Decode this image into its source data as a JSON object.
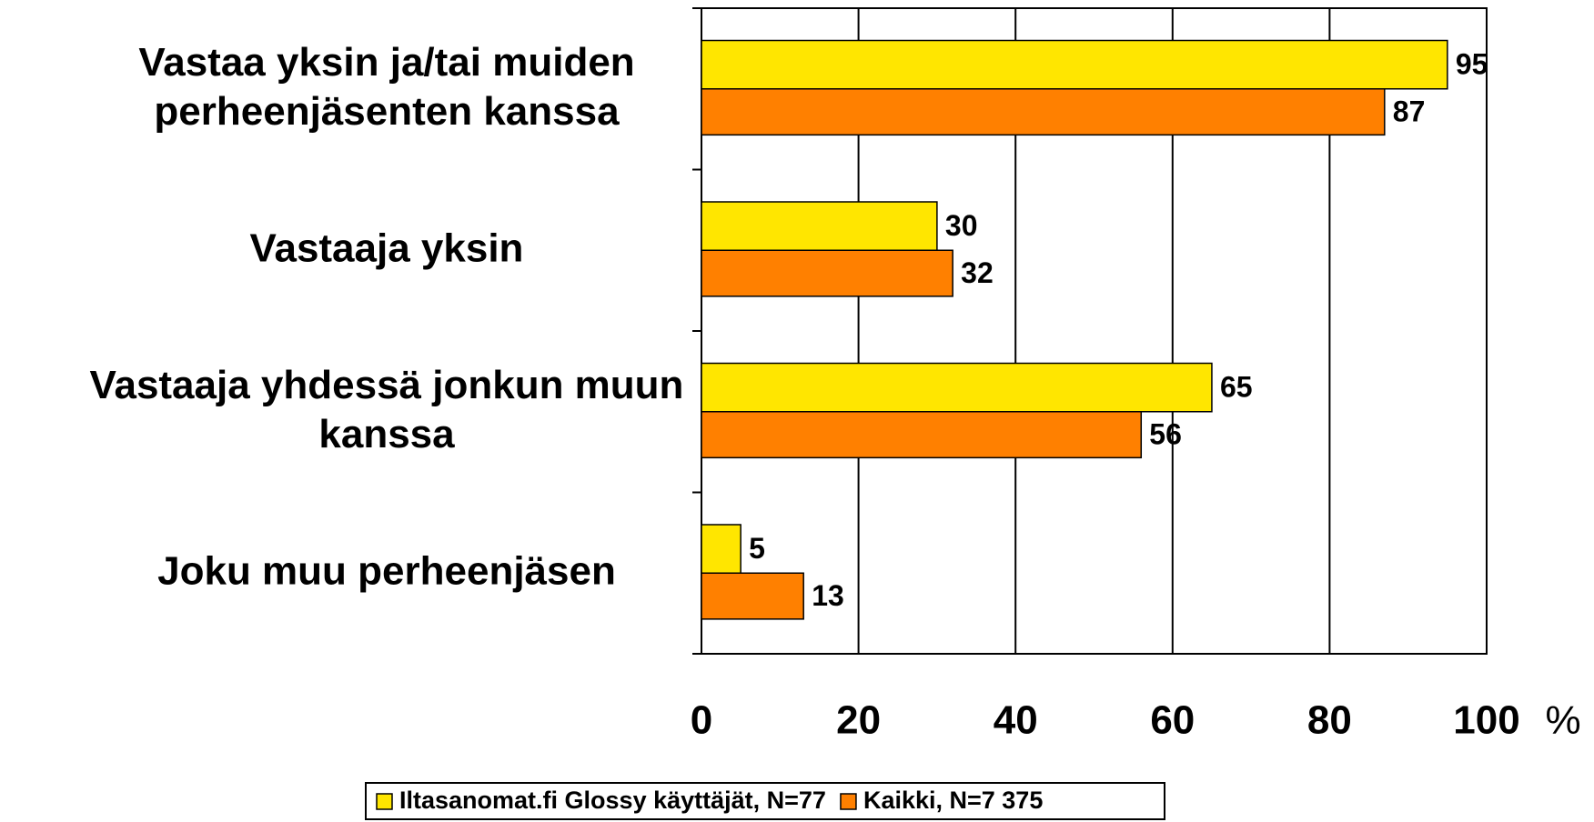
{
  "chart_data": {
    "type": "barh",
    "categories": [
      "Vastaa yksin ja/tai muiden\nperheenjäsenten kanssa",
      "Vastaaja yksin",
      "Vastaaja yhdessä jonkun muun\nkanssa",
      "Joku muu perheenjäsen"
    ],
    "series": [
      {
        "name": "Iltasanomat.fi Glossy käyttäjät, N=77",
        "color": "#ffe600",
        "values": [
          95,
          30,
          65,
          5
        ]
      },
      {
        "name": "Kaikki, N=7 375",
        "color": "#ff8000",
        "values": [
          87,
          32,
          56,
          13
        ]
      }
    ],
    "xlim": [
      0,
      100
    ],
    "xticks": [
      0,
      20,
      40,
      60,
      80,
      100
    ],
    "xlabel": "%",
    "grid": true,
    "legend": "bottom"
  }
}
